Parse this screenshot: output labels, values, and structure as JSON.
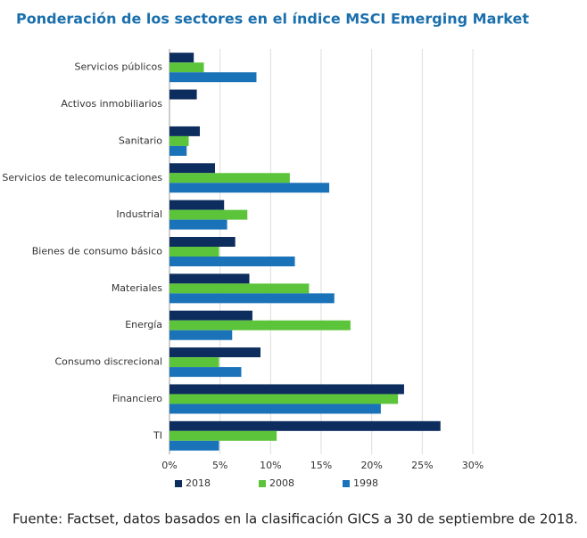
{
  "chart_data": {
    "type": "hbar",
    "title": "Ponderación de los sectores en el índice MSCI Emerging Market",
    "source": "Fuente: Factset, datos basados en la clasificación GICS a 30 de septiembre de 2018.",
    "categories": [
      "Servicios públicos",
      "Activos inmobiliarios",
      "Sanitario",
      "Servicios de telecomunicaciones",
      "Industrial",
      "Bienes de consumo básico",
      "Materiales",
      "Energía",
      "Consumo discrecional",
      "Financiero",
      "TI"
    ],
    "series": [
      {
        "name": "2018",
        "color": "#0d2d5e",
        "values": [
          2.4,
          2.7,
          3.0,
          4.5,
          5.4,
          6.5,
          7.9,
          8.2,
          9.0,
          23.2,
          26.8
        ]
      },
      {
        "name": "2008",
        "color": "#5cc43a",
        "values": [
          3.4,
          null,
          1.9,
          11.9,
          7.7,
          4.9,
          13.8,
          17.9,
          4.9,
          22.6,
          10.6
        ]
      },
      {
        "name": "1998",
        "color": "#1a72b8",
        "values": [
          8.6,
          null,
          1.7,
          15.8,
          5.7,
          12.4,
          16.3,
          6.2,
          7.1,
          20.9,
          4.9
        ]
      }
    ],
    "xlim": [
      0,
      30
    ],
    "xticks": [
      {
        "value": 0,
        "label": "0%"
      },
      {
        "value": 5,
        "label": "5%"
      },
      {
        "value": 10,
        "label": "10%"
      },
      {
        "value": 15,
        "label": "15%"
      },
      {
        "value": 20,
        "label": "20%"
      },
      {
        "value": 25,
        "label": "25%"
      },
      {
        "value": 30,
        "label": "30%"
      }
    ],
    "grid": true
  }
}
